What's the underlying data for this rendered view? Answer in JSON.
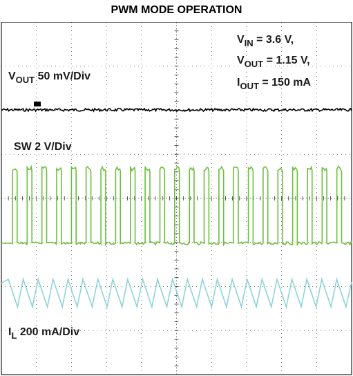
{
  "chart_data": {
    "type": "line",
    "title": "PWM MODE OPERATION",
    "grid": true,
    "annotations": {
      "vin": {
        "sym": "V",
        "sub": "IN",
        "rest": " = 3.6 V,"
      },
      "vout": {
        "sym": "V",
        "sub": "OUT",
        "rest": " = 1.15 V,"
      },
      "iout": {
        "sym": "I",
        "sub": "OUT",
        "rest": " = 150 mA"
      }
    },
    "channels": [
      {
        "name": "VOUT",
        "label_sym": "V",
        "label_sub": "OUT",
        "label_rest": " 50 mV/Div",
        "color": "#000000",
        "waveform": "flat-noise"
      },
      {
        "name": "SW",
        "label_sym": "SW",
        "label_sub": "",
        "label_rest": " 2 V/Div",
        "color": "#6cbf3c",
        "waveform": "square",
        "cycles": 23,
        "duty": 0.32
      },
      {
        "name": "IL",
        "label_sym": "I",
        "label_sub": "L",
        "label_rest": "  200 mA/Div",
        "color": "#8fd3d8",
        "waveform": "triangle",
        "cycles": 23
      }
    ]
  }
}
